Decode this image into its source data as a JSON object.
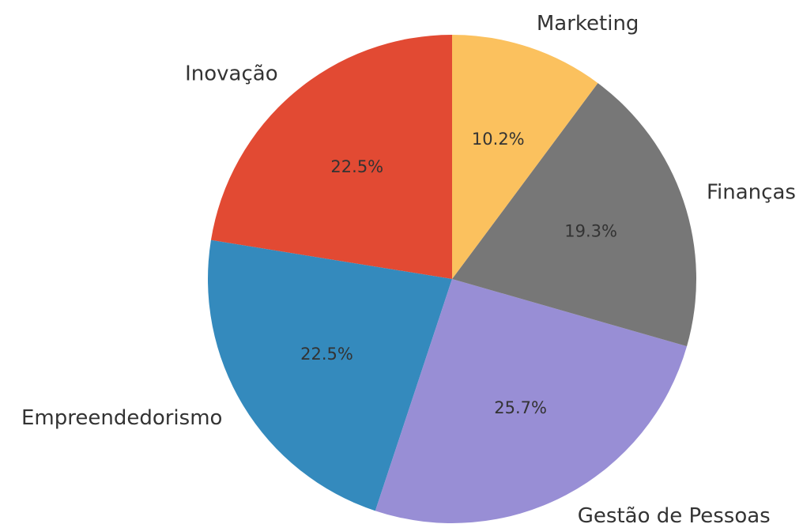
{
  "chart_data": {
    "type": "pie",
    "categories": [
      "Inovação",
      "Empreendedorismo",
      "Gestão de Pessoas",
      "Finanças",
      "Marketing"
    ],
    "values": [
      22.5,
      22.5,
      25.7,
      19.3,
      10.2
    ],
    "value_labels": [
      "22.5%",
      "22.5%",
      "25.7%",
      "19.3%",
      "10.2%"
    ],
    "colors": [
      "#E24A33",
      "#348ABD",
      "#988ED5",
      "#777777",
      "#FBC15E"
    ],
    "start_angle": 90,
    "counterclockwise": true
  }
}
